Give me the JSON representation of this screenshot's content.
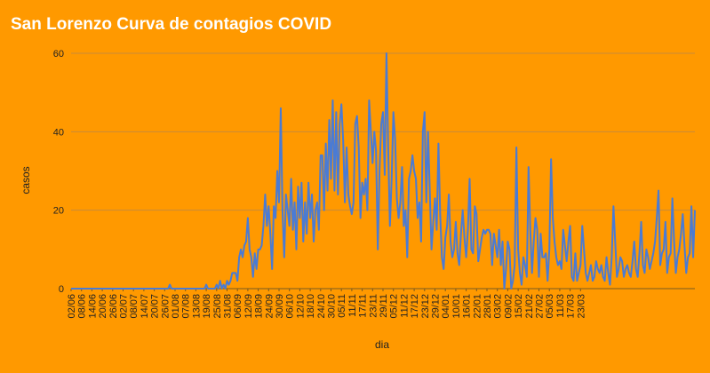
{
  "chart_data": {
    "type": "line",
    "title": "San Lorenzo Curva de contagios COVID",
    "xlabel": "dia",
    "ylabel": "casos",
    "ylim": [
      0,
      60
    ],
    "yticks": [
      0,
      20,
      40,
      60
    ],
    "grid": true,
    "colors": {
      "background": "#FF9900",
      "line": "#4A7BD4",
      "gridline": "#C98A3A",
      "title": "#FFFFFF"
    },
    "x_tick_labels": [
      "02/06",
      "08/06",
      "14/06",
      "20/06",
      "26/06",
      "02/07",
      "08/07",
      "14/07",
      "20/07",
      "26/07",
      "01/08",
      "07/08",
      "13/08",
      "19/08",
      "25/08",
      "31/08",
      "06/09",
      "12/09",
      "18/09",
      "24/09",
      "30/09",
      "06/10",
      "12/10",
      "18/10",
      "24/10",
      "30/10",
      "05/11",
      "11/11",
      "17/11",
      "23/11",
      "29/11",
      "05/12",
      "11/12",
      "17/12",
      "23/12",
      "29/12",
      "04/01",
      "10/01",
      "16/01",
      "22/01",
      "28/01",
      "03/02",
      "09/02",
      "15/02",
      "21/02",
      "27/02",
      "05/03",
      "11/03",
      "17/03",
      "23/03"
    ],
    "series": [
      {
        "values": [
          0,
          0,
          0,
          0,
          0,
          0,
          0,
          0,
          0,
          0,
          0,
          0,
          0,
          0,
          0,
          0,
          0,
          0,
          0,
          0,
          0,
          0,
          0,
          0,
          0,
          0,
          0,
          0,
          0,
          0,
          0,
          0,
          0,
          0,
          0,
          0,
          0,
          0,
          0,
          0,
          0,
          0,
          0,
          0,
          0,
          0,
          0,
          0,
          0,
          0,
          0,
          0,
          0,
          0,
          0,
          0,
          0,
          1,
          0,
          0,
          0,
          0,
          0,
          0,
          0,
          0,
          0,
          0,
          0,
          0,
          0,
          0,
          0,
          0,
          0,
          0,
          0,
          0,
          1,
          0,
          0,
          0,
          0,
          0,
          1,
          0,
          2,
          0,
          1,
          0,
          2,
          1,
          2,
          4,
          4,
          4,
          2,
          8,
          10,
          8,
          11,
          12,
          18,
          10,
          8,
          3,
          9,
          5,
          10,
          10,
          11,
          16,
          24,
          16,
          21,
          14,
          5,
          21,
          18,
          30,
          22,
          46,
          20,
          8,
          24,
          20,
          16,
          28,
          15,
          22,
          10,
          26,
          18,
          27,
          12,
          22,
          14,
          27,
          18,
          24,
          12,
          20,
          22,
          15,
          34,
          34,
          20,
          37,
          25,
          43,
          28,
          48,
          25,
          45,
          24,
          42,
          47,
          38,
          22,
          36,
          24,
          21,
          19,
          22,
          42,
          44,
          36,
          18,
          27,
          24,
          28,
          20,
          48,
          40,
          32,
          40,
          35,
          10,
          30,
          42,
          45,
          29,
          60,
          36,
          16,
          28,
          45,
          38,
          23,
          18,
          22,
          31,
          16,
          20,
          8,
          28,
          30,
          34,
          30,
          28,
          18,
          22,
          12,
          40,
          45,
          22,
          40,
          25,
          10,
          17,
          23,
          15,
          37,
          19,
          8,
          5,
          13,
          16,
          24,
          12,
          8,
          10,
          17,
          9,
          6,
          14,
          20,
          13,
          8,
          15,
          28,
          10,
          9,
          21,
          19,
          7,
          10,
          13,
          15,
          14,
          15,
          15,
          14,
          6,
          14,
          11,
          8,
          15,
          6,
          12,
          0,
          5,
          12,
          10,
          0,
          2,
          6,
          36,
          10,
          4,
          1,
          8,
          6,
          3,
          31,
          15,
          4,
          12,
          18,
          15,
          3,
          14,
          8,
          8,
          9,
          2,
          10,
          33,
          18,
          12,
          8,
          6,
          7,
          5,
          15,
          11,
          7,
          12,
          16,
          3,
          2,
          9,
          2,
          4,
          6,
          16,
          10,
          4,
          2,
          4,
          6,
          2,
          3,
          7,
          5,
          4,
          6,
          3,
          2,
          8,
          4,
          1,
          8,
          21,
          12,
          3,
          5,
          8,
          7,
          3,
          5,
          6,
          4,
          3,
          7,
          12,
          5,
          3,
          9,
          17,
          6,
          4,
          10,
          8,
          5,
          7,
          9,
          12,
          18,
          25,
          6,
          9,
          10,
          17,
          4,
          8,
          9,
          23,
          12,
          4,
          8,
          10,
          14,
          19,
          11,
          4,
          8,
          9,
          21,
          8,
          20
        ]
      }
    ]
  }
}
